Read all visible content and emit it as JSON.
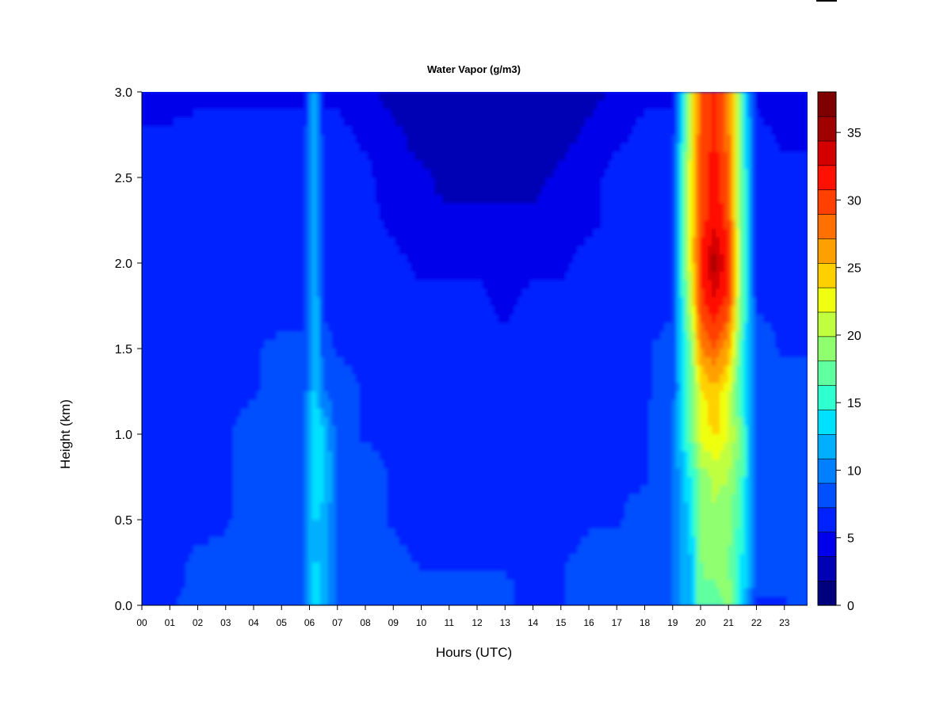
{
  "chart_data": {
    "type": "heatmap",
    "title": "Water Vapor (g/m3)",
    "xlabel": "Hours (UTC)",
    "ylabel": "Height (km)",
    "xlim": [
      0,
      24
    ],
    "ylim": [
      0.0,
      3.0
    ],
    "x_ticks": [
      "00",
      "01",
      "02",
      "03",
      "04",
      "05",
      "06",
      "07",
      "08",
      "09",
      "10",
      "11",
      "12",
      "13",
      "14",
      "15",
      "16",
      "17",
      "18",
      "19",
      "20",
      "21",
      "22",
      "23"
    ],
    "y_ticks": [
      "0.0",
      "0.5",
      "1.0",
      "1.5",
      "2.0",
      "2.5",
      "3.0"
    ],
    "colorbar": {
      "min": 0,
      "max": 38,
      "ticks": [
        "0",
        "5",
        "10",
        "15",
        "20",
        "25",
        "30",
        "35"
      ],
      "colors": [
        "#00007f",
        "#0000b4",
        "#0000ea",
        "#0022ff",
        "#0050ff",
        "#0080ff",
        "#00b0ff",
        "#00e0ff",
        "#30ffd0",
        "#60ff9f",
        "#90ff6f",
        "#c0ff3f",
        "#f0ff0f",
        "#ffd000",
        "#ffa000",
        "#ff7000",
        "#ff4000",
        "#ff1000",
        "#d40000",
        "#9f0000",
        "#7f0000"
      ]
    },
    "hours": [
      0,
      1,
      2,
      3,
      4,
      5,
      5.8,
      6.2,
      6.5,
      7,
      8,
      9,
      10,
      11,
      12,
      13,
      14,
      15,
      16,
      17,
      18,
      19,
      19.7,
      20,
      20.5,
      21,
      21.5,
      22,
      23,
      23.8
    ],
    "heights": [
      0.0,
      0.25,
      0.5,
      0.75,
      1.0,
      1.25,
      1.5,
      1.75,
      2.0,
      2.25,
      2.5,
      2.75,
      3.0
    ],
    "values": [
      [
        6,
        7,
        8,
        8,
        8,
        8,
        9,
        14,
        12,
        9,
        9,
        9,
        9,
        9,
        9,
        8,
        6,
        7,
        9,
        9,
        9,
        9,
        13,
        18,
        17,
        19,
        14,
        7,
        7,
        8
      ],
      [
        6,
        6,
        8,
        8,
        8,
        8,
        9,
        13,
        12,
        9,
        8,
        8,
        7,
        7,
        7,
        7,
        7,
        7,
        8,
        8,
        9,
        9,
        13,
        18,
        19,
        18,
        14,
        9,
        8,
        8
      ],
      [
        6,
        6,
        6,
        7,
        8,
        8,
        9,
        13,
        12,
        9,
        8,
        7,
        6,
        6,
        6,
        6,
        6,
        6,
        7,
        7,
        8,
        9,
        14,
        18,
        20,
        19,
        15,
        9,
        8,
        8
      ],
      [
        6,
        6,
        6,
        7,
        8,
        8,
        9,
        14,
        13,
        9,
        8,
        7,
        6,
        6,
        6,
        6,
        6,
        6,
        7,
        7,
        7,
        9,
        15,
        19,
        20,
        20,
        16,
        9,
        8,
        8
      ],
      [
        6,
        6,
        6,
        7,
        8,
        8,
        9,
        15,
        13,
        8,
        7,
        7,
        6,
        6,
        6,
        6,
        6,
        6,
        7,
        7,
        7,
        9,
        18,
        22,
        24,
        22,
        17,
        8,
        8,
        8
      ],
      [
        6,
        6,
        6,
        7,
        7,
        8,
        8,
        13,
        9,
        8,
        7,
        7,
        6,
        6,
        6,
        6,
        6,
        6,
        6,
        7,
        7,
        8,
        18,
        23,
        25,
        22,
        14,
        8,
        8,
        8
      ],
      [
        6,
        6,
        6,
        7,
        7,
        8,
        8,
        13,
        8,
        7,
        7,
        6,
        6,
        6,
        6,
        6,
        6,
        6,
        6,
        7,
        7,
        8,
        19,
        27,
        29,
        26,
        15,
        8,
        7,
        7
      ],
      [
        6,
        6,
        6,
        6,
        6,
        6,
        6,
        13,
        7,
        6,
        6,
        6,
        6,
        6,
        6,
        5,
        6,
        6,
        6,
        6,
        6,
        7,
        22,
        30,
        32,
        30,
        17,
        7,
        7,
        7
      ],
      [
        6,
        6,
        6,
        6,
        6,
        6,
        6,
        13,
        6,
        6,
        6,
        6,
        5,
        5,
        5,
        5,
        5,
        5,
        6,
        6,
        6,
        7,
        24,
        31,
        35,
        31,
        17,
        6,
        6,
        6
      ],
      [
        6,
        6,
        6,
        6,
        6,
        6,
        6,
        13,
        6,
        6,
        6,
        5,
        4,
        4,
        4,
        4,
        4,
        5,
        5,
        6,
        6,
        7,
        24,
        30,
        32,
        30,
        17,
        6,
        6,
        6
      ],
      [
        6,
        6,
        6,
        6,
        6,
        6,
        6,
        13,
        6,
        6,
        6,
        4,
        4,
        3,
        3,
        3,
        3,
        4,
        5,
        6,
        6,
        7,
        24,
        30,
        32,
        29,
        17,
        6,
        6,
        6
      ],
      [
        6,
        6,
        6,
        6,
        6,
        6,
        6,
        13,
        6,
        6,
        5,
        4,
        3,
        3,
        3,
        3,
        3,
        3,
        4,
        5,
        6,
        6,
        23,
        29,
        31,
        28,
        16,
        6,
        5,
        5
      ],
      [
        4,
        4,
        5,
        5,
        5,
        5,
        5,
        13,
        5,
        5,
        4,
        3,
        3,
        2,
        2,
        2,
        2,
        3,
        3,
        4,
        5,
        5,
        23,
        29,
        31,
        28,
        16,
        5,
        4,
        4
      ]
    ]
  }
}
